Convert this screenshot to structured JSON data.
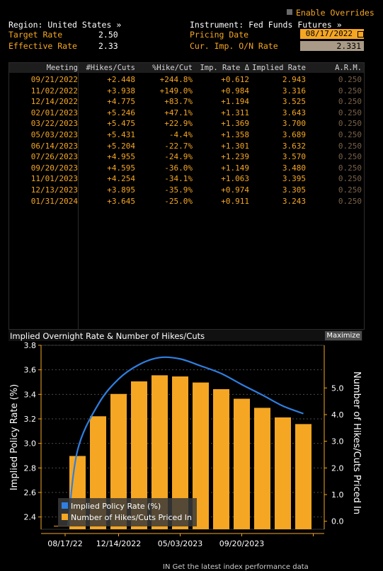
{
  "header": {
    "region_label": "Region: United States »",
    "instrument_label": "Instrument: Fed Funds Futures »",
    "enable_overrides": "Enable Overrides",
    "target_rate_label": "Target Rate",
    "target_rate_value": "2.50",
    "effective_rate_label": "Effective Rate",
    "effective_rate_value": "2.33",
    "pricing_date_label": "Pricing Date",
    "pricing_date_value": "08/17/2022",
    "cur_imp_label": "Cur. Imp. O/N Rate",
    "cur_imp_value": "2.331"
  },
  "table": {
    "columns": [
      "Meeting",
      "#Hikes/Cuts",
      "%Hike/Cut",
      "Imp. Rate Δ",
      "Implied Rate",
      "A.R.M."
    ],
    "rows": [
      [
        "09/21/2022",
        "+2.448",
        "+244.8%",
        "+0.612",
        "2.943",
        "0.250"
      ],
      [
        "11/02/2022",
        "+3.938",
        "+149.0%",
        "+0.984",
        "3.316",
        "0.250"
      ],
      [
        "12/14/2022",
        "+4.775",
        "+83.7%",
        "+1.194",
        "3.525",
        "0.250"
      ],
      [
        "02/01/2023",
        "+5.246",
        "+47.1%",
        "+1.311",
        "3.643",
        "0.250"
      ],
      [
        "03/22/2023",
        "+5.475",
        "+22.9%",
        "+1.369",
        "3.700",
        "0.250"
      ],
      [
        "05/03/2023",
        "+5.431",
        "-4.4%",
        "+1.358",
        "3.689",
        "0.250"
      ],
      [
        "06/14/2023",
        "+5.204",
        "-22.7%",
        "+1.301",
        "3.632",
        "0.250"
      ],
      [
        "07/26/2023",
        "+4.955",
        "-24.9%",
        "+1.239",
        "3.570",
        "0.250"
      ],
      [
        "09/20/2023",
        "+4.595",
        "-36.0%",
        "+1.149",
        "3.480",
        "0.250"
      ],
      [
        "11/01/2023",
        "+4.254",
        "-34.1%",
        "+1.063",
        "3.395",
        "0.250"
      ],
      [
        "12/13/2023",
        "+3.895",
        "-35.9%",
        "+0.974",
        "3.305",
        "0.250"
      ],
      [
        "01/31/2024",
        "+3.645",
        "-25.0%",
        "+0.911",
        "3.243",
        "0.250"
      ]
    ]
  },
  "chart_header": {
    "title": "Implied Overnight Rate & Number of Hikes/Cuts",
    "maximize_label": "Maximize"
  },
  "chart_data": {
    "type": "bar",
    "categories": [
      "09/21/2022",
      "11/02/2022",
      "12/14/2022",
      "02/01/2023",
      "03/22/2023",
      "05/03/2023",
      "06/14/2023",
      "07/26/2023",
      "09/20/2023",
      "11/01/2023",
      "12/13/2023",
      "01/31/2024"
    ],
    "series": [
      {
        "name": "Implied Policy Rate (%)",
        "type": "line",
        "axis": "left",
        "start": 2.331,
        "values": [
          2.943,
          3.316,
          3.525,
          3.643,
          3.7,
          3.689,
          3.632,
          3.57,
          3.48,
          3.395,
          3.305,
          3.243
        ],
        "color": "#2f7fe0"
      },
      {
        "name": "Number of Hikes/Cuts Priced In",
        "type": "bar",
        "axis": "right",
        "values": [
          2.448,
          3.938,
          4.775,
          5.246,
          5.475,
          5.431,
          5.204,
          4.955,
          4.595,
          4.254,
          3.895,
          3.645
        ],
        "color": "#f5a623"
      }
    ],
    "ylabel": "Implied Policy Rate (%)",
    "ylabel_right": "Number of Hikes/Cuts Priced In",
    "ylim": [
      2.3,
      3.8
    ],
    "ylim_right": [
      -0.3,
      6.6
    ],
    "yticks": [
      "3.8",
      "3.6",
      "3.4",
      "3.2",
      "3.0",
      "2.8",
      "2.6",
      "2.4"
    ],
    "yticks_right": [
      "5.0",
      "4.0",
      "3.0",
      "2.0",
      "1.0",
      "0.0"
    ],
    "xticks": [
      "08/17/22",
      "12/14/2022",
      "05/03/2023",
      "09/20/2023"
    ],
    "grid": true,
    "legend": "bottom-left"
  },
  "colors": {
    "accent": "#f5a623",
    "line": "#2f7fe0",
    "background": "#000000"
  },
  "footer_text": "IN  Get the latest index performance data"
}
